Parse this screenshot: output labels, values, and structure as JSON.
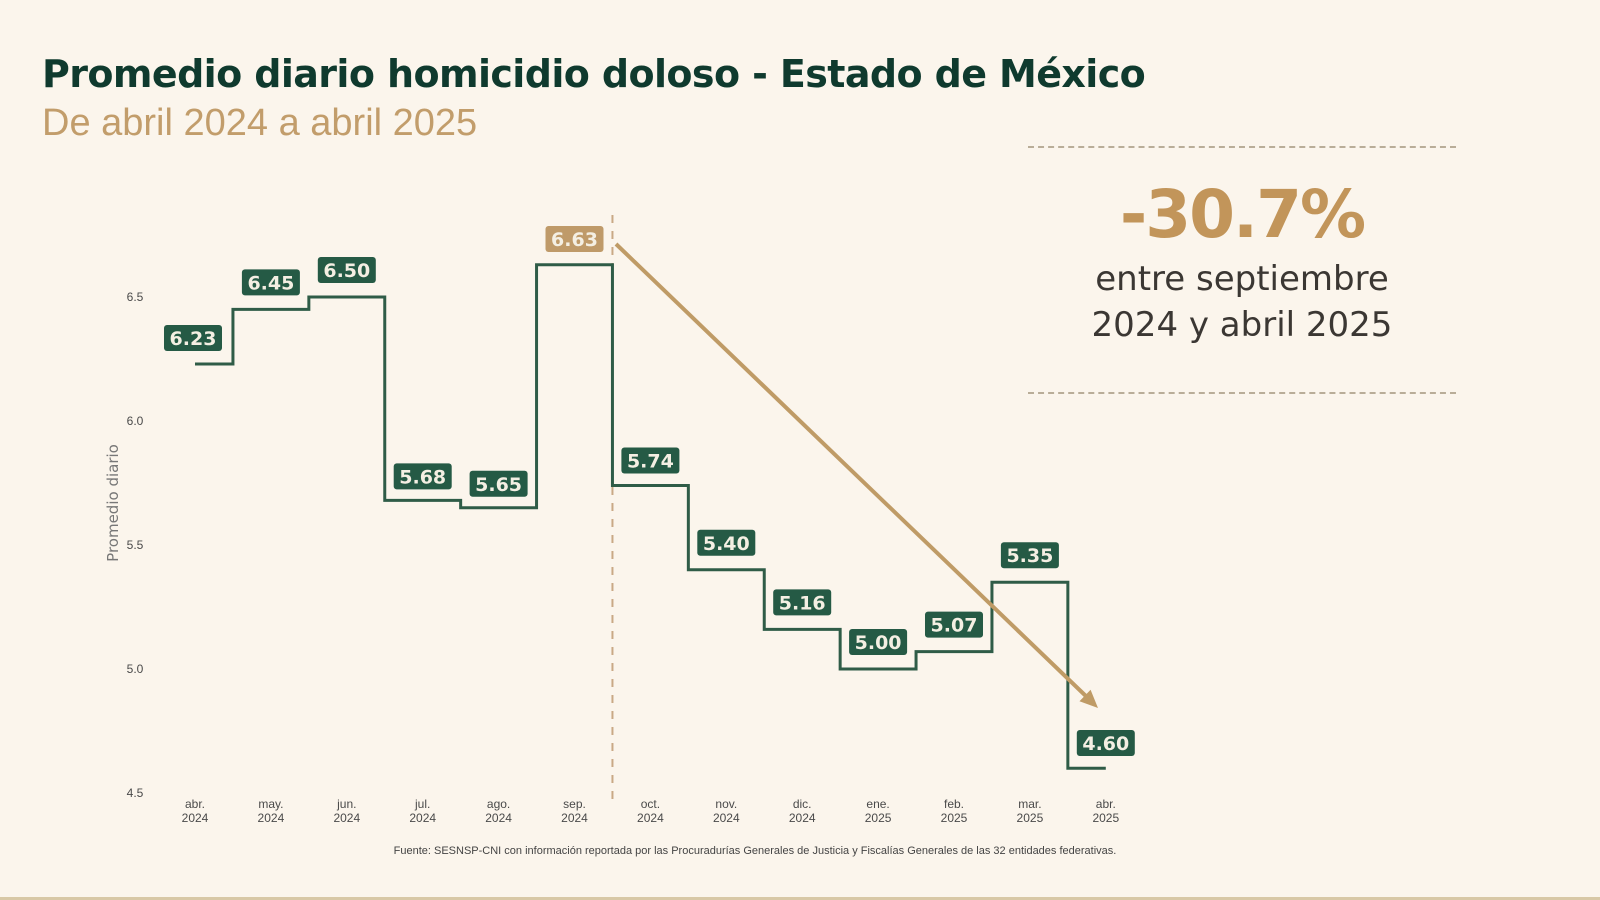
{
  "header": {
    "title": "Promedio diario homicidio doloso - Estado de México",
    "subtitle": "De abril 2024 a abril 2025"
  },
  "kpi": {
    "value": "-30.7%",
    "caption_line1": "entre septiembre",
    "caption_line2": "2024 y abril 2025"
  },
  "source": "Fuente: SESNSP-CNI con información reportada por las Procuradurías Generales de Justicia y Fiscalías Generales de las 32 entidades federativas.",
  "colors": {
    "step_line": "#2f5c47",
    "label_bg": "#255a45",
    "highlight_label_bg": "#bf9a69",
    "trend_arrow": "#bf9b66",
    "title": "#0f3a2e",
    "subtitle": "#c29d6b",
    "kpi_value": "#c2955a",
    "background": "#fbf5ec"
  },
  "chart_data": {
    "type": "line",
    "subtype": "step",
    "title": "Promedio diario homicidio doloso - Estado de México",
    "subtitle": "De abril 2024 a abril 2025",
    "xlabel": "",
    "ylabel": "Promedio diario",
    "ylim": [
      4.5,
      6.7
    ],
    "yticks": [
      "4.5",
      "5.0",
      "5.5",
      "6.0",
      "6.5"
    ],
    "grid": false,
    "legend": null,
    "categories": [
      [
        "abr.",
        "2024"
      ],
      [
        "may.",
        "2024"
      ],
      [
        "jun.",
        "2024"
      ],
      [
        "jul.",
        "2024"
      ],
      [
        "ago.",
        "2024"
      ],
      [
        "sep.",
        "2024"
      ],
      [
        "oct.",
        "2024"
      ],
      [
        "nov.",
        "2024"
      ],
      [
        "dic.",
        "2024"
      ],
      [
        "ene.",
        "2025"
      ],
      [
        "feb.",
        "2025"
      ],
      [
        "mar.",
        "2025"
      ],
      [
        "abr.",
        "2025"
      ]
    ],
    "series": [
      {
        "name": "Promedio diario",
        "values": [
          6.23,
          6.45,
          6.5,
          5.68,
          5.65,
          6.63,
          5.74,
          5.4,
          5.16,
          5.0,
          5.07,
          5.35,
          4.6
        ],
        "labels": [
          "6.23",
          "6.45",
          "6.50",
          "5.68",
          "5.65",
          "6.63",
          "5.74",
          "5.40",
          "5.16",
          "5.00",
          "5.07",
          "5.35",
          "4.60"
        ]
      }
    ],
    "highlight_index": 5,
    "annotations": [
      {
        "type": "vertical-dashed-line",
        "at": "sep. 2024 / oct. 2024 boundary"
      },
      {
        "type": "trend-arrow",
        "from": "sep. 2024 (6.63)",
        "to": "abr. 2025 (4.60)",
        "text": "-30.7% entre septiembre 2024 y abril 2025"
      }
    ]
  }
}
